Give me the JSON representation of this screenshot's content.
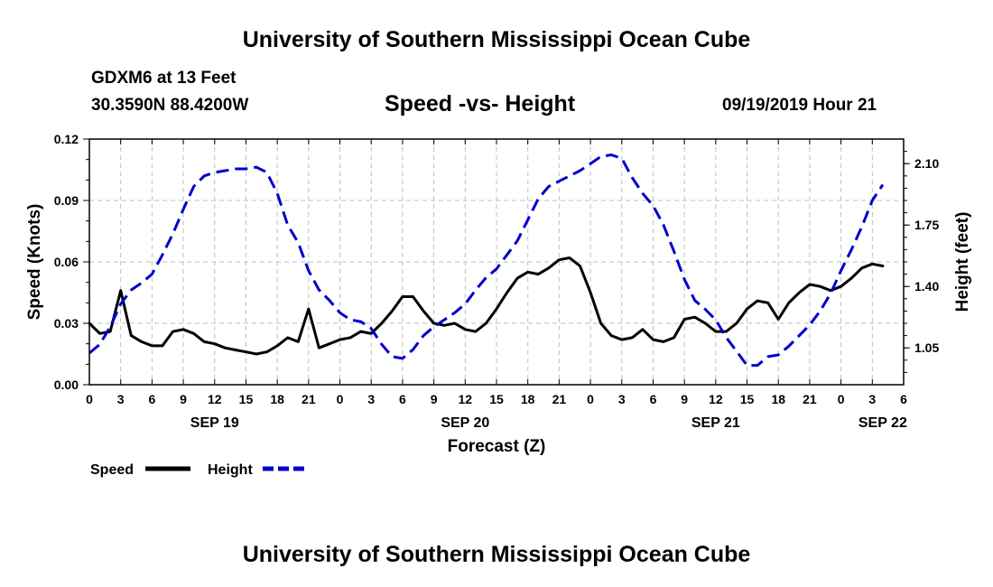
{
  "header": {
    "top_title": "University of Southern Mississippi Ocean Cube",
    "station": "GDXM6 at 13 Feet",
    "coords": "30.3590N 88.4200W",
    "date": "09/19/2019 Hour 21",
    "bottom_title": "University of Southern Mississippi Ocean Cube"
  },
  "chart_data": {
    "type": "line",
    "title": "Speed -vs- Height",
    "xlabel": "Forecast (Z)",
    "ylabel_left": "Speed (Knots)",
    "ylabel_right": "Height (feet)",
    "x_unit": "hours since 00Z Sep 19",
    "xlim": [
      0,
      78
    ],
    "ylim_left": [
      0,
      0.12
    ],
    "ylim_right": [
      0.84,
      2.24
    ],
    "grid": true,
    "legend_position": "bottom-left",
    "x_ticks": [
      0,
      3,
      6,
      9,
      12,
      15,
      18,
      21,
      24,
      27,
      30,
      33,
      36,
      39,
      42,
      45,
      48,
      51,
      54,
      57,
      60,
      63,
      66,
      69,
      72,
      75,
      78
    ],
    "x_tick_labels": [
      "0",
      "3",
      "6",
      "9",
      "12",
      "15",
      "18",
      "21",
      "0",
      "3",
      "6",
      "9",
      "12",
      "15",
      "18",
      "21",
      "0",
      "3",
      "6",
      "9",
      "12",
      "15",
      "18",
      "21",
      "0",
      "3",
      "6"
    ],
    "date_labels": [
      {
        "x": 12,
        "label": "SEP 19"
      },
      {
        "x": 36,
        "label": "SEP 20"
      },
      {
        "x": 60,
        "label": "SEP 21"
      },
      {
        "x": 76,
        "label": "SEP 22"
      }
    ],
    "y_left_ticks": [
      0,
      0.03,
      0.06,
      0.09,
      0.12
    ],
    "y_left_tick_labels": [
      "0.00",
      "0.03",
      "0.06",
      "0.09",
      "0.12"
    ],
    "y_right_ticks": [
      1.05,
      1.4,
      1.75,
      2.1
    ],
    "y_right_tick_labels": [
      "1.05",
      "1.40",
      "1.75",
      "2.10"
    ],
    "series": [
      {
        "name": "Speed",
        "axis": "left",
        "color": "#000000",
        "dash": "solid",
        "points": [
          [
            0,
            0.03
          ],
          [
            1,
            0.025
          ],
          [
            2,
            0.026
          ],
          [
            3,
            0.046
          ],
          [
            4,
            0.024
          ],
          [
            5,
            0.021
          ],
          [
            6,
            0.019
          ],
          [
            7,
            0.019
          ],
          [
            8,
            0.026
          ],
          [
            9,
            0.027
          ],
          [
            10,
            0.025
          ],
          [
            11,
            0.021
          ],
          [
            12,
            0.02
          ],
          [
            13,
            0.018
          ],
          [
            14,
            0.017
          ],
          [
            15,
            0.016
          ],
          [
            16,
            0.015
          ],
          [
            17,
            0.016
          ],
          [
            18,
            0.019
          ],
          [
            19,
            0.023
          ],
          [
            20,
            0.021
          ],
          [
            21,
            0.037
          ],
          [
            22,
            0.018
          ],
          [
            23,
            0.02
          ],
          [
            24,
            0.022
          ],
          [
            25,
            0.023
          ],
          [
            26,
            0.026
          ],
          [
            27,
            0.025
          ],
          [
            28,
            0.03
          ],
          [
            29,
            0.036
          ],
          [
            30,
            0.043
          ],
          [
            31,
            0.043
          ],
          [
            32,
            0.036
          ],
          [
            33,
            0.03
          ],
          [
            34,
            0.029
          ],
          [
            35,
            0.03
          ],
          [
            36,
            0.027
          ],
          [
            37,
            0.026
          ],
          [
            38,
            0.03
          ],
          [
            39,
            0.037
          ],
          [
            40,
            0.045
          ],
          [
            41,
            0.052
          ],
          [
            42,
            0.055
          ],
          [
            43,
            0.054
          ],
          [
            44,
            0.057
          ],
          [
            45,
            0.061
          ],
          [
            46,
            0.062
          ],
          [
            47,
            0.058
          ],
          [
            48,
            0.045
          ],
          [
            49,
            0.03
          ],
          [
            50,
            0.024
          ],
          [
            51,
            0.022
          ],
          [
            52,
            0.023
          ],
          [
            53,
            0.027
          ],
          [
            54,
            0.022
          ],
          [
            55,
            0.021
          ],
          [
            56,
            0.023
          ],
          [
            57,
            0.032
          ],
          [
            58,
            0.033
          ],
          [
            59,
            0.03
          ],
          [
            60,
            0.026
          ],
          [
            61,
            0.026
          ],
          [
            62,
            0.03
          ],
          [
            63,
            0.037
          ],
          [
            64,
            0.041
          ],
          [
            65,
            0.04
          ],
          [
            66,
            0.032
          ],
          [
            67,
            0.04
          ],
          [
            68,
            0.045
          ],
          [
            69,
            0.049
          ],
          [
            70,
            0.048
          ],
          [
            71,
            0.046
          ],
          [
            72,
            0.048
          ],
          [
            73,
            0.052
          ],
          [
            74,
            0.057
          ],
          [
            75,
            0.059
          ],
          [
            76,
            0.058
          ]
        ]
      },
      {
        "name": "Height",
        "axis": "right",
        "color": "#0000cc",
        "dash": "dashed",
        "points": [
          [
            0,
            1.02
          ],
          [
            1,
            1.07
          ],
          [
            2,
            1.17
          ],
          [
            3,
            1.3
          ],
          [
            4,
            1.38
          ],
          [
            5,
            1.42
          ],
          [
            6,
            1.47
          ],
          [
            7,
            1.58
          ],
          [
            8,
            1.7
          ],
          [
            9,
            1.84
          ],
          [
            10,
            1.97
          ],
          [
            11,
            2.03
          ],
          [
            12,
            2.05
          ],
          [
            13,
            2.06
          ],
          [
            14,
            2.07
          ],
          [
            15,
            2.07
          ],
          [
            16,
            2.08
          ],
          [
            17,
            2.05
          ],
          [
            18,
            1.93
          ],
          [
            19,
            1.75
          ],
          [
            20,
            1.65
          ],
          [
            21,
            1.49
          ],
          [
            22,
            1.38
          ],
          [
            23,
            1.32
          ],
          [
            24,
            1.25
          ],
          [
            25,
            1.21
          ],
          [
            26,
            1.2
          ],
          [
            27,
            1.16
          ],
          [
            28,
            1.07
          ],
          [
            29,
            1.0
          ],
          [
            30,
            0.99
          ],
          [
            31,
            1.04
          ],
          [
            32,
            1.12
          ],
          [
            33,
            1.17
          ],
          [
            34,
            1.21
          ],
          [
            35,
            1.25
          ],
          [
            36,
            1.3
          ],
          [
            37,
            1.38
          ],
          [
            38,
            1.45
          ],
          [
            39,
            1.5
          ],
          [
            40,
            1.58
          ],
          [
            41,
            1.66
          ],
          [
            42,
            1.78
          ],
          [
            43,
            1.9
          ],
          [
            44,
            1.97
          ],
          [
            45,
            2.0
          ],
          [
            46,
            2.03
          ],
          [
            47,
            2.06
          ],
          [
            48,
            2.1
          ],
          [
            49,
            2.14
          ],
          [
            50,
            2.15
          ],
          [
            51,
            2.13
          ],
          [
            52,
            2.02
          ],
          [
            53,
            1.93
          ],
          [
            54,
            1.86
          ],
          [
            55,
            1.75
          ],
          [
            56,
            1.6
          ],
          [
            57,
            1.44
          ],
          [
            58,
            1.32
          ],
          [
            59,
            1.27
          ],
          [
            60,
            1.21
          ],
          [
            61,
            1.11
          ],
          [
            62,
            1.03
          ],
          [
            63,
            0.95
          ],
          [
            64,
            0.95
          ],
          [
            65,
            1.0
          ],
          [
            66,
            1.01
          ],
          [
            67,
            1.06
          ],
          [
            68,
            1.12
          ],
          [
            69,
            1.18
          ],
          [
            70,
            1.26
          ],
          [
            71,
            1.36
          ],
          [
            72,
            1.49
          ],
          [
            73,
            1.61
          ],
          [
            74,
            1.74
          ],
          [
            75,
            1.89
          ],
          [
            76,
            1.98
          ]
        ]
      }
    ],
    "legend": [
      {
        "label": "Speed",
        "color": "#000000",
        "dash": "solid"
      },
      {
        "label": "Height",
        "color": "#0000cc",
        "dash": "dashed"
      }
    ]
  }
}
